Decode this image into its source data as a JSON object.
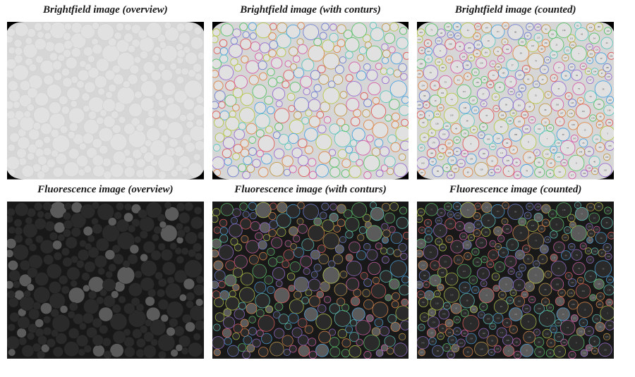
{
  "figure": {
    "rows": 2,
    "cols": 3,
    "panel_aspect": 1.27,
    "background_color": "#ffffff",
    "caption_font": {
      "family": "Georgia, 'Times New Roman', serif",
      "style": "italic",
      "weight": "bold",
      "size_pt": 11,
      "color": "#1a1a1a"
    }
  },
  "panels": {
    "brightfield": {
      "row_label_prefix": "Brightfield image",
      "variants": [
        {
          "key": "overview",
          "caption": "Brightfield image (overview)"
        },
        {
          "key": "contours",
          "caption": "Brightfield image (with conturs)"
        },
        {
          "key": "counted",
          "caption": "Brightfield image (counted)"
        }
      ],
      "bead_base_fill": "#e2e1e1",
      "bead_stroke": "#cfcfcf",
      "background": "#d7d6d6",
      "vignette_color": "#000000",
      "show_vignette_corners": true
    },
    "fluorescence": {
      "row_label_prefix": "Fluorescence image",
      "variants": [
        {
          "key": "overview",
          "caption": "Fluorescence image (overview)"
        },
        {
          "key": "contours",
          "caption": "Fluorescence image (with conturs)"
        },
        {
          "key": "counted",
          "caption": "Fluorescence image (counted)"
        }
      ],
      "bead_base_fill": "#2a2a2a",
      "bead_bright_fill": "#5b5b5b",
      "bead_stroke": "#1c1c1c",
      "background": "#181818",
      "show_vignette_corners": false
    }
  },
  "beads": {
    "seed": 20240117,
    "count": 430,
    "radius_min": 5.0,
    "radius_max": 13.0,
    "viewbox_w": 290,
    "viewbox_h": 228,
    "bright_fraction_fluorescence": 0.18
  },
  "contour_palette": [
    "#e05a5a",
    "#4aa3e0",
    "#5ac46a",
    "#c49b4a",
    "#9a6fd1",
    "#d65fab",
    "#5fc9c0",
    "#b7c94a",
    "#e0884a",
    "#6f7fd1"
  ],
  "counted_label": {
    "font_size": 3.0,
    "text_color_light": "#3a3a3a",
    "text_color_dark": "#9aa0a6"
  }
}
